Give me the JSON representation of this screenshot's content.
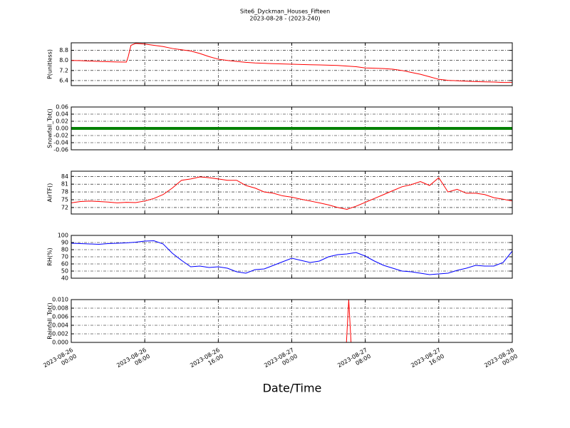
{
  "title": "Site6_Dyckman_Houses_Fifteen",
  "subtitle": "2023-08-28 - (2023-240)",
  "xlabel": "Date/Time",
  "chart_data": [
    {
      "type": "line",
      "ylabel": "P(unitless)",
      "color": "#ff0000",
      "grid": true,
      "xlim": [
        0,
        48
      ],
      "xticks": [
        0,
        8,
        16,
        24,
        32,
        40,
        48
      ],
      "ylim": [
        6.0,
        9.4
      ],
      "yticks": [
        6.4,
        7.2,
        {
          "value": 8,
          "label": "8.0"
        },
        8.8
      ],
      "x": [
        0,
        1,
        2,
        3,
        4,
        5,
        6,
        6.2,
        6.5,
        7,
        8,
        9,
        10,
        11,
        12,
        13,
        14,
        15,
        16,
        17,
        18,
        19,
        20,
        21,
        22,
        23,
        24,
        25,
        26,
        27,
        28,
        29,
        30,
        31,
        32,
        33,
        34,
        35,
        36,
        37,
        38,
        39,
        40,
        41,
        42,
        43,
        44,
        45,
        46,
        47,
        48
      ],
      "values": [
        8.0,
        7.98,
        7.95,
        7.92,
        7.9,
        7.88,
        7.87,
        8.3,
        9.2,
        9.35,
        9.3,
        9.2,
        9.1,
        8.95,
        8.85,
        8.75,
        8.55,
        8.3,
        8.1,
        8.0,
        7.92,
        7.85,
        7.8,
        7.77,
        7.74,
        7.72,
        7.7,
        7.68,
        7.66,
        7.64,
        7.62,
        7.6,
        7.55,
        7.5,
        7.4,
        7.38,
        7.35,
        7.3,
        7.2,
        7.05,
        6.9,
        6.7,
        6.5,
        6.42,
        6.38,
        6.35,
        6.32,
        6.3,
        6.28,
        6.25,
        6.25
      ]
    },
    {
      "type": "line",
      "ylabel": "Snowfall_Tot()",
      "color": "#008000",
      "grid": true,
      "xlim": [
        0,
        48
      ],
      "xticks": [
        0,
        8,
        16,
        24,
        32,
        40,
        48
      ],
      "ylim": [
        -0.06,
        0.06
      ],
      "yticks": [
        -0.06,
        -0.04,
        -0.02,
        {
          "value": 0,
          "label": "0.00"
        },
        0.02,
        0.04,
        0.06
      ],
      "x": [
        0,
        48
      ],
      "values": [
        0,
        0
      ]
    },
    {
      "type": "line",
      "ylabel": "AirTF()",
      "color": "#ff0000",
      "grid": true,
      "xlim": [
        0,
        48
      ],
      "xticks": [
        0,
        8,
        16,
        24,
        32,
        40,
        48
      ],
      "ylim": [
        69.5,
        86
      ],
      "yticks": [
        72,
        75,
        78,
        81,
        84
      ],
      "x": [
        0,
        1,
        2,
        3,
        4,
        5,
        6,
        7,
        8,
        9,
        10,
        11,
        12,
        13,
        14,
        15,
        16,
        17,
        18,
        19,
        20,
        21,
        22,
        23,
        24,
        25,
        26,
        27,
        28,
        29,
        30,
        31,
        32,
        33,
        34,
        35,
        36,
        37,
        38,
        39,
        40,
        41,
        42,
        43,
        44,
        45,
        46,
        47,
        48
      ],
      "values": [
        73.8,
        74.3,
        74.5,
        74.3,
        74.1,
        73.8,
        74.0,
        73.9,
        74.5,
        75.5,
        77,
        79.5,
        82.5,
        83,
        83.8,
        83.5,
        83,
        82.5,
        82.5,
        80.5,
        79.5,
        78,
        77.5,
        76.5,
        76,
        75.2,
        74.5,
        73.8,
        73,
        72,
        71.3,
        72.5,
        74,
        75.5,
        77,
        78.5,
        80,
        80.8,
        82,
        80.5,
        83.5,
        78,
        79,
        77.5,
        77.5,
        77,
        75.8,
        75.2,
        74.5
      ]
    },
    {
      "type": "line",
      "ylabel": "RH(%)",
      "color": "#0000ff",
      "grid": true,
      "xlim": [
        0,
        48
      ],
      "xticks": [
        0,
        8,
        16,
        24,
        32,
        40,
        48
      ],
      "ylim": [
        40,
        100
      ],
      "yticks": [
        40,
        50,
        60,
        70,
        80,
        90,
        100
      ],
      "x": [
        0,
        1,
        2,
        3,
        4,
        5,
        6,
        7,
        8,
        9,
        10,
        11,
        12,
        13,
        14,
        15,
        16,
        17,
        18,
        19,
        20,
        21,
        22,
        23,
        24,
        25,
        26,
        27,
        28,
        29,
        30,
        31,
        32,
        33,
        34,
        35,
        36,
        37,
        38,
        39,
        40,
        41,
        42,
        43,
        44,
        45,
        46,
        47,
        48
      ],
      "values": [
        89,
        88.5,
        88,
        87.5,
        88.5,
        89,
        89.5,
        90.5,
        92,
        92.5,
        88,
        75,
        65,
        56,
        57,
        55,
        56,
        54,
        49,
        47,
        52,
        53,
        58,
        63,
        68,
        65,
        62,
        64,
        70,
        73,
        74,
        76,
        71,
        64,
        58,
        54,
        50,
        49,
        47,
        45,
        46,
        47,
        51,
        54,
        58,
        57,
        57,
        62,
        78
      ]
    },
    {
      "type": "line",
      "ylabel": "Rainfall_Tot()",
      "color": "#ff0000",
      "grid": true,
      "xlim": [
        0,
        48
      ],
      "xticks": [
        {
          "value": 0,
          "label": "2023-08-26\n00:00"
        },
        {
          "value": 8,
          "label": "2023-08-26\n08:00"
        },
        {
          "value": 16,
          "label": "2023-08-26\n16:00"
        },
        {
          "value": 24,
          "label": "2023-08-27\n00:00"
        },
        {
          "value": 32,
          "label": "2023-08-27\n08:00"
        },
        {
          "value": 40,
          "label": "2023-08-27\n16:00"
        },
        {
          "value": 48,
          "label": "2023-08-28\n00:00"
        }
      ],
      "ylim": [
        0,
        0.01
      ],
      "yticks": [
        {
          "value": 0,
          "label": "0.000"
        },
        0.002,
        0.004,
        0.006,
        0.008,
        {
          "value": 0.01,
          "label": "0.010"
        }
      ],
      "x": [
        0,
        29.95,
        30.2,
        30.45,
        48
      ],
      "values": [
        0,
        0,
        0.01,
        0,
        0
      ]
    }
  ]
}
